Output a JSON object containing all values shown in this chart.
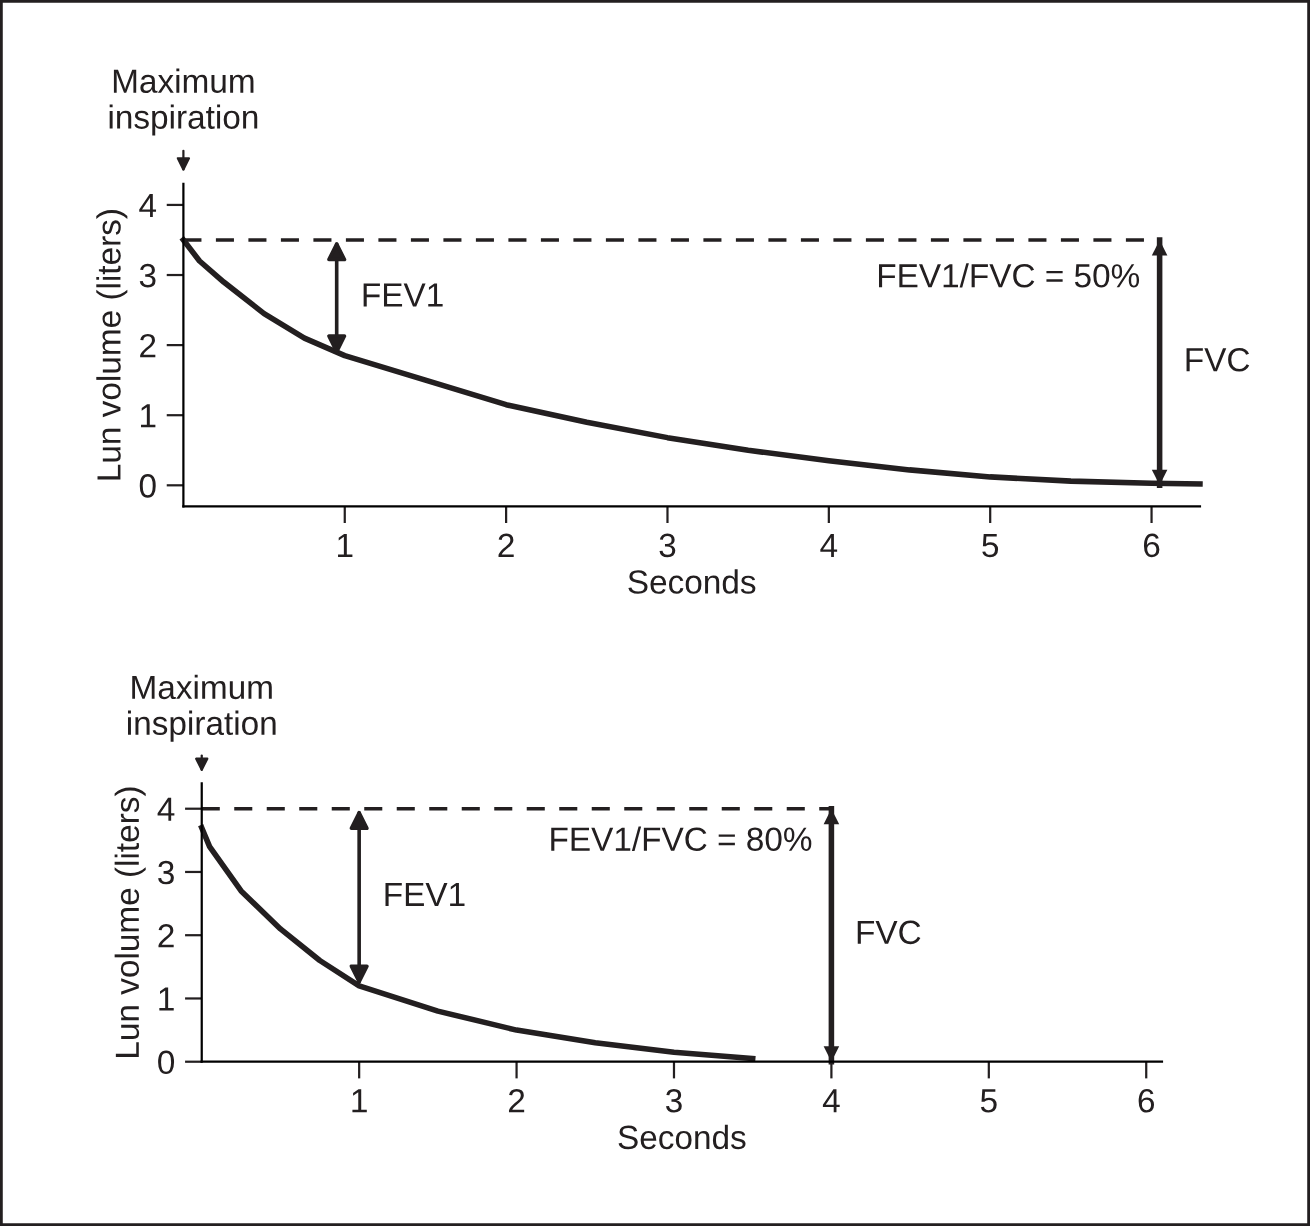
{
  "chart_data": [
    {
      "type": "line",
      "xlabel": "Seconds",
      "ylabel": "Lun volume (liters)",
      "xlim": [
        0,
        6.3
      ],
      "ylim": [
        -0.3,
        4.3
      ],
      "xticks": [
        1,
        2,
        3,
        4,
        5,
        6
      ],
      "yticks": [
        0,
        1,
        2,
        3,
        4
      ],
      "grid": false,
      "legend": false,
      "series": [
        {
          "color": "#231f20",
          "x": [
            0,
            0.1,
            0.25,
            0.5,
            0.75,
            1,
            1.5,
            2,
            2.5,
            3,
            3.5,
            4,
            4.5,
            5,
            5.5,
            6,
            6.3
          ],
          "values": [
            3.5,
            3.2,
            2.9,
            2.45,
            2.1,
            1.85,
            1.5,
            1.15,
            0.9,
            0.68,
            0.5,
            0.35,
            0.22,
            0.12,
            0.06,
            0.03,
            0.02
          ]
        },
        {
          "type": "line",
          "line_style": "dashed",
          "color": "#231f20",
          "x": [
            0,
            6.05
          ],
          "values": [
            3.5,
            3.5
          ]
        },
        {
          "type": "line",
          "name": "FVC",
          "color": "#231f20",
          "x": [
            6.05,
            6.05
          ],
          "values": [
            0,
            3.5
          ]
        }
      ],
      "annotations": [
        "Maximum\ninspiration",
        "FEV1/FVC = 50%",
        {
          "text": "FEV1",
          "x": 0.95,
          "y": 1.85
        }
      ]
    },
    {
      "type": "line",
      "xlabel": "Seconds",
      "ylabel": "Lun volume (liters)",
      "xlim": [
        0,
        6.1
      ],
      "ylim": [
        0,
        4.4
      ],
      "xticks": [
        1,
        2,
        3,
        4,
        5,
        6
      ],
      "yticks": [
        0,
        1,
        2,
        3,
        4
      ],
      "grid": false,
      "legend": false,
      "series": [
        {
          "color": "#231f20",
          "x": [
            0,
            0.05,
            0.25,
            0.5,
            0.75,
            1,
            1.5,
            2,
            2.5,
            3,
            3.5
          ],
          "values": [
            3.7,
            3.4,
            2.7,
            2.1,
            1.6,
            1.2,
            0.8,
            0.5,
            0.3,
            0.15,
            0.05
          ]
        },
        {
          "type": "line",
          "line_style": "dashed",
          "color": "#231f20",
          "x": [
            0,
            4
          ],
          "values": [
            4,
            4
          ]
        },
        {
          "type": "line",
          "name": "FVC",
          "color": "#231f20",
          "x": [
            4,
            4
          ],
          "values": [
            0,
            4
          ]
        }
      ],
      "annotations": [
        "Maximum\ninspiration",
        "FEV1/FVC = 80%",
        {
          "text": "FEV1",
          "x": 1,
          "y": 1.2
        }
      ]
    }
  ]
}
